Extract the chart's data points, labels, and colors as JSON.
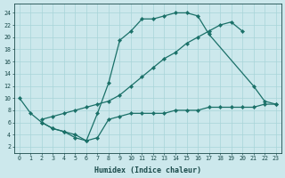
{
  "xlabel": "Humidex (Indice chaleur)",
  "bg_color": "#cce8ec",
  "grid_color": "#a8d4d8",
  "line_color": "#1a7068",
  "xticks": [
    0,
    1,
    2,
    3,
    4,
    5,
    6,
    7,
    8,
    9,
    10,
    11,
    12,
    13,
    14,
    15,
    16,
    17,
    18,
    19,
    20,
    21,
    22,
    23
  ],
  "yticks": [
    2,
    4,
    6,
    8,
    10,
    12,
    14,
    16,
    18,
    20,
    22,
    24
  ],
  "xlim": [
    -0.5,
    23.5
  ],
  "ylim": [
    1,
    25.5
  ],
  "curve_arch_x": [
    0,
    1,
    2,
    3,
    4,
    5,
    6,
    7,
    8,
    9,
    10,
    11,
    12,
    13,
    14,
    15,
    16,
    17,
    21,
    22,
    23
  ],
  "curve_arch_y": [
    10,
    7.5,
    6,
    5,
    4.5,
    3.5,
    3,
    7.5,
    12.5,
    19.5,
    21,
    23,
    23,
    23.5,
    24,
    24,
    23.5,
    20.5,
    12,
    9.5,
    9
  ],
  "curve_diag_x": [
    2,
    3,
    4,
    5,
    6,
    7,
    8,
    9,
    10,
    11,
    12,
    13,
    14,
    15,
    16,
    17,
    18,
    19,
    20
  ],
  "curve_diag_y": [
    6.5,
    7.0,
    7.5,
    8.0,
    8.5,
    9.0,
    9.5,
    10.5,
    12.0,
    13.5,
    15.0,
    16.5,
    17.5,
    19.0,
    20.0,
    21.0,
    22.0,
    22.5,
    21.0
  ],
  "curve_dip_x": [
    2,
    3,
    4,
    5,
    6,
    7,
    8,
    9,
    10,
    11,
    12,
    13,
    14,
    15,
    16,
    17,
    18,
    19,
    20,
    21,
    22,
    23
  ],
  "curve_dip_y": [
    6.0,
    5.0,
    4.5,
    4.0,
    3.0,
    3.5,
    6.5,
    7.0,
    7.5,
    7.5,
    7.5,
    7.5,
    8.0,
    8.0,
    8.0,
    8.5,
    8.5,
    8.5,
    8.5,
    8.5,
    9.0,
    9.0
  ]
}
